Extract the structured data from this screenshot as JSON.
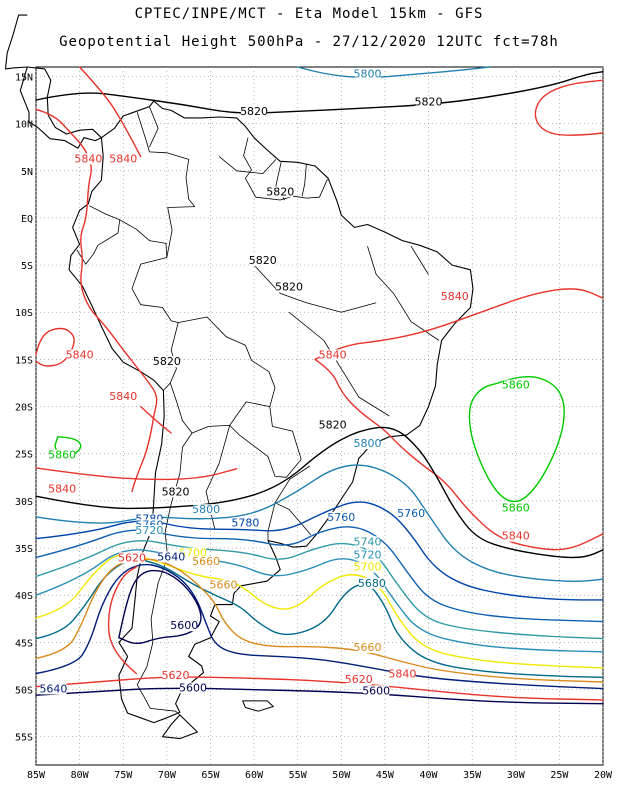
{
  "header": {
    "line1": "CPTEC/INPE/MCT -  Eta Model 15km - GFS",
    "line2": "Geopotential Height 500hPa - 27/12/2020 12UTC fct=78h"
  },
  "axes": {
    "lat_labels": [
      "15N",
      "10N",
      "5N",
      "EQ",
      "5S",
      "10S",
      "15S",
      "20S",
      "25S",
      "30S",
      "35S",
      "40S",
      "45S",
      "50S",
      "55S"
    ],
    "lon_labels": [
      "85W",
      "80W",
      "75W",
      "70W",
      "65W",
      "60W",
      "55W",
      "50W",
      "45W",
      "40W",
      "35W",
      "30W",
      "25W",
      "20W"
    ],
    "lat_range": [
      16,
      -58
    ],
    "lon_range": [
      -85,
      -20
    ],
    "grid": "dotted"
  },
  "colors": {
    "5600": "#000050",
    "5620": "#e8332b",
    "5640": "#001e7a",
    "5660": "#d98b1e",
    "5680": "#006a8a",
    "5700": "#f0e800",
    "5720": "#2a8fb8",
    "5740": "#2f9aa6",
    "5760": "#1060b0",
    "5780": "#0044aa",
    "5800": "#2080b0",
    "5820": "#000000",
    "5840": "#e8332b",
    "5860": "#00c800",
    "coast": "#000000",
    "grid": "#999999"
  },
  "contour_labels": [
    {
      "text": "5800",
      "lon": -47,
      "lat": 15
    },
    {
      "text": "5820",
      "lon": -60,
      "lat": 11
    },
    {
      "text": "5820",
      "lon": -40,
      "lat": 12
    },
    {
      "text": "5840",
      "lon": -75,
      "lat": 6
    },
    {
      "text": "5840",
      "lon": -79,
      "lat": 6
    },
    {
      "text": "5820",
      "lon": -57,
      "lat": 2.5
    },
    {
      "text": "5820",
      "lon": -59,
      "lat": -4.8
    },
    {
      "text": "5820",
      "lon": -56,
      "lat": -7.6
    },
    {
      "text": "5840",
      "lon": -37,
      "lat": -8.6
    },
    {
      "text": "5840",
      "lon": -80,
      "lat": -14.8
    },
    {
      "text": "5820",
      "lon": -70,
      "lat": -15.5
    },
    {
      "text": "5840",
      "lon": -51,
      "lat": -14.8
    },
    {
      "text": "5840",
      "lon": -75,
      "lat": -19.2
    },
    {
      "text": "5860",
      "lon": -30,
      "lat": -18
    },
    {
      "text": "5820",
      "lon": -51,
      "lat": -22.2
    },
    {
      "text": "5860",
      "lon": -82,
      "lat": -25.4
    },
    {
      "text": "5800",
      "lon": -47,
      "lat": -24.2
    },
    {
      "text": "5840",
      "lon": -82,
      "lat": -29
    },
    {
      "text": "5820",
      "lon": -69,
      "lat": -29.3
    },
    {
      "text": "5800",
      "lon": -65.5,
      "lat": -31.2
    },
    {
      "text": "5780",
      "lon": -72,
      "lat": -32.2
    },
    {
      "text": "5760",
      "lon": -72,
      "lat": -32.8
    },
    {
      "text": "5780",
      "lon": -61,
      "lat": -32.6
    },
    {
      "text": "5760",
      "lon": -50,
      "lat": -32
    },
    {
      "text": "5760",
      "lon": -42,
      "lat": -31.6
    },
    {
      "text": "5720",
      "lon": -72,
      "lat": -33.4
    },
    {
      "text": "5740",
      "lon": -47,
      "lat": -34.6
    },
    {
      "text": "5720",
      "lon": -47,
      "lat": -36
    },
    {
      "text": "5700",
      "lon": -67,
      "lat": -35.8
    },
    {
      "text": "5640",
      "lon": -69.5,
      "lat": -36.2
    },
    {
      "text": "5620",
      "lon": -74,
      "lat": -36.3
    },
    {
      "text": "5660",
      "lon": -65.5,
      "lat": -36.7
    },
    {
      "text": "5700",
      "lon": -47,
      "lat": -37.3
    },
    {
      "text": "5660",
      "lon": -63.5,
      "lat": -39.2
    },
    {
      "text": "5680",
      "lon": -46.5,
      "lat": -39
    },
    {
      "text": "5860",
      "lon": -30,
      "lat": -31
    },
    {
      "text": "5840",
      "lon": -30,
      "lat": -34
    },
    {
      "text": "5600",
      "lon": -68,
      "lat": -43.5
    },
    {
      "text": "5660",
      "lon": -47,
      "lat": -45.8
    },
    {
      "text": "5620",
      "lon": -69,
      "lat": -48.8
    },
    {
      "text": "5620",
      "lon": -48,
      "lat": -49.2
    },
    {
      "text": "5840",
      "lon": -43,
      "lat": -48.6
    },
    {
      "text": "5640",
      "lon": -83,
      "lat": -50.2
    },
    {
      "text": "5600",
      "lon": -67,
      "lat": -50.1
    },
    {
      "text": "5600",
      "lon": -46,
      "lat": -50.4
    }
  ]
}
